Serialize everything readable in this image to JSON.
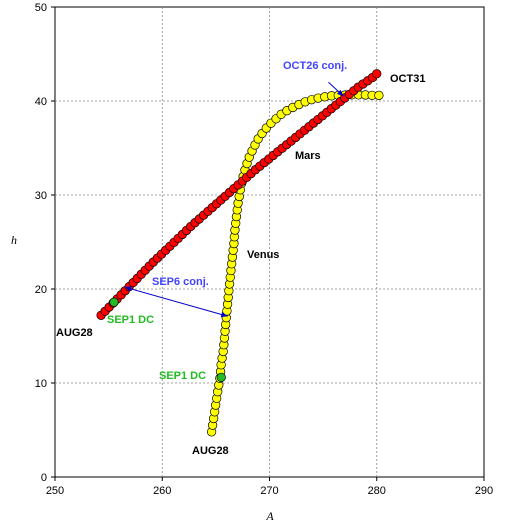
{
  "chart_data": {
    "type": "scatter",
    "xlabel": "A",
    "ylabel": "h",
    "xlim": [
      250,
      290
    ],
    "ylim": [
      0,
      50
    ],
    "xticks": [
      250,
      260,
      270,
      280,
      290
    ],
    "yticks": [
      0,
      10,
      20,
      30,
      40,
      50
    ],
    "grid": true,
    "series": [
      {
        "name": "Venus",
        "color": "#FFFF00",
        "points": [
          [
            264.6,
            4.8
          ],
          [
            264.8,
            6.3
          ],
          [
            265.0,
            7.8
          ],
          [
            265.2,
            9.3
          ],
          [
            265.4,
            10.7
          ],
          [
            265.5,
            12.1
          ],
          [
            265.7,
            13.5
          ],
          [
            265.8,
            14.8
          ],
          [
            265.9,
            16.1
          ],
          [
            266.0,
            17.3
          ],
          [
            266.1,
            18.5
          ],
          [
            266.2,
            19.7
          ],
          [
            266.3,
            20.8
          ],
          [
            266.4,
            21.9
          ],
          [
            266.5,
            23.0
          ],
          [
            266.6,
            24.0
          ],
          [
            266.7,
            25.0
          ],
          [
            266.75,
            26.0
          ],
          [
            266.85,
            27.0
          ],
          [
            266.95,
            28.0
          ],
          [
            267.05,
            29.0
          ],
          [
            267.2,
            30.0
          ],
          [
            267.35,
            31.0
          ],
          [
            267.55,
            32.0
          ],
          [
            267.8,
            33.0
          ],
          [
            268.1,
            34.0
          ],
          [
            268.5,
            35.0
          ],
          [
            268.9,
            35.9
          ],
          [
            269.4,
            36.7
          ],
          [
            269.9,
            37.4
          ],
          [
            270.5,
            38.0
          ],
          [
            271.1,
            38.6
          ],
          [
            271.8,
            39.1
          ],
          [
            272.5,
            39.5
          ],
          [
            273.3,
            39.9
          ],
          [
            274.1,
            40.2
          ],
          [
            274.9,
            40.4
          ],
          [
            275.7,
            40.55
          ],
          [
            276.5,
            40.6
          ],
          [
            277.3,
            40.65
          ],
          [
            278.1,
            40.65
          ],
          [
            278.9,
            40.65
          ],
          [
            279.6,
            40.6
          ],
          [
            280.2,
            40.6
          ]
        ]
      },
      {
        "name": "Mars",
        "color": "#FF0000",
        "points": [
          [
            254.3,
            17.2
          ],
          [
            255.5,
            18.6
          ],
          [
            256.7,
            20.0
          ],
          [
            257.9,
            21.4
          ],
          [
            259.1,
            22.8
          ],
          [
            260.3,
            24.1
          ],
          [
            261.5,
            25.4
          ],
          [
            262.7,
            26.7
          ],
          [
            263.9,
            27.9
          ],
          [
            265.1,
            29.1
          ],
          [
            266.3,
            30.3
          ],
          [
            267.5,
            31.5
          ],
          [
            268.7,
            32.7
          ],
          [
            269.9,
            33.8
          ],
          [
            271.1,
            34.9
          ],
          [
            272.3,
            36.0
          ],
          [
            273.5,
            37.1
          ],
          [
            274.7,
            38.2
          ],
          [
            275.9,
            39.3
          ],
          [
            277.1,
            40.4
          ],
          [
            278.3,
            41.5
          ],
          [
            279.5,
            42.4
          ],
          [
            280.0,
            42.9
          ]
        ]
      }
    ],
    "annotations": {
      "venus_label": "Venus",
      "mars_label": "Mars",
      "venus_start": "AUG28",
      "mars_start": "AUG28",
      "mars_end": "OCT31",
      "venus_dc": "SEP1 DC",
      "mars_dc": "SEP1 DC",
      "sep6_conj": "SEP6 conj.",
      "oct26_conj": "OCT26 conj."
    },
    "annotation_colors": {
      "conj": "#4444FF",
      "dc": "#22BB22",
      "arrow": "#0000CC"
    }
  }
}
